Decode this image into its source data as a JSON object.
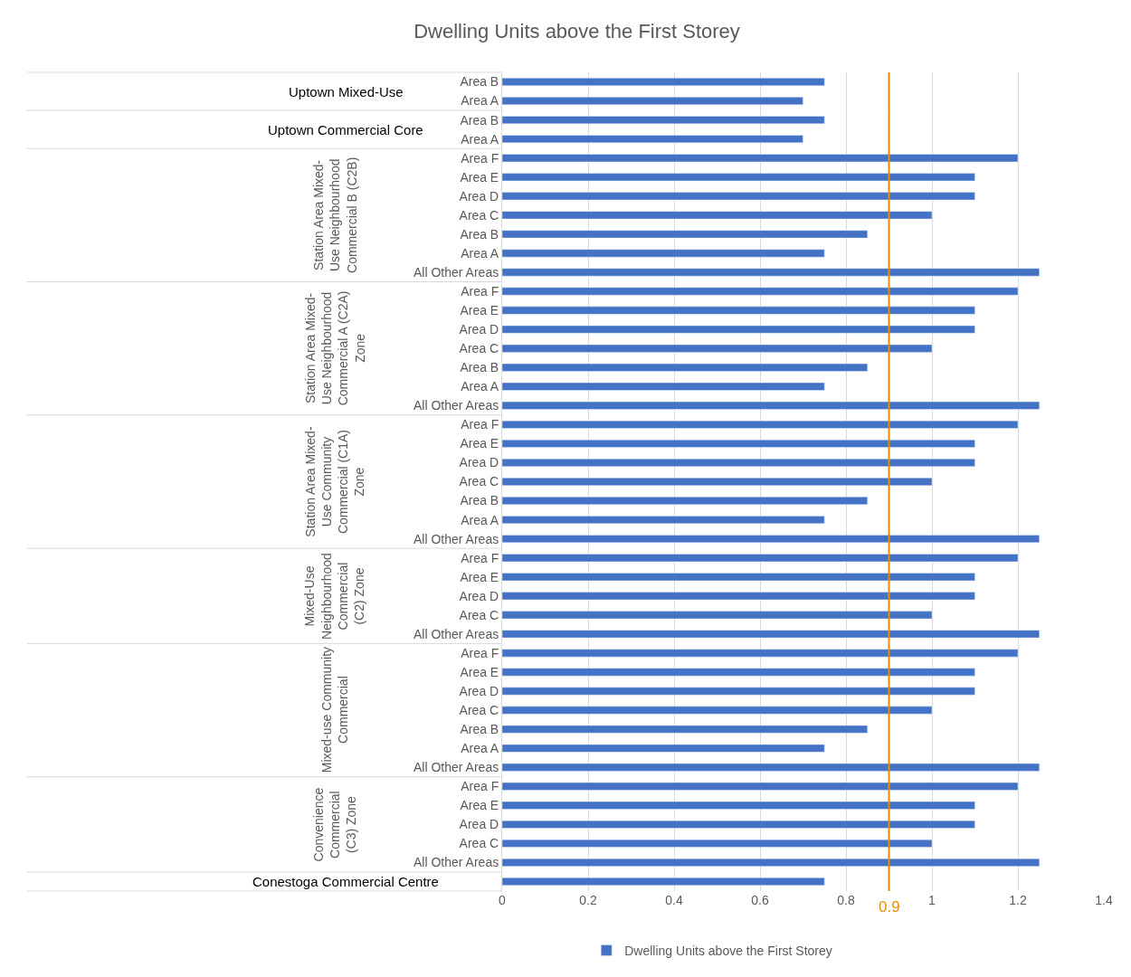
{
  "chart_data": [
    {
      "type": "bar",
      "orientation": "horizontal",
      "title": "Dwelling Units above the First Storey",
      "ylabel": "Uptown Mixed-Use",
      "categories": [
        "Area B",
        "Area A"
      ],
      "series": [
        {
          "color": "#4472c4",
          "values": [
            0.75,
            0.7
          ]
        }
      ],
      "ref_lines": [
        {
          "axis": "x",
          "value": 0.9,
          "color": "#ed8b00"
        }
      ],
      "xlim": [
        0,
        1.4
      ],
      "xticks": [
        0,
        0.2,
        0.4,
        0.6,
        0.8,
        1,
        1.2,
        1.4
      ],
      "tick_labels": "y",
      "grid": "x"
    },
    {
      "type": "bar",
      "orientation": "horizontal",
      "ylabel": "Uptown Commercial Core",
      "categories": [
        "Area B",
        "Area A"
      ],
      "series": [
        {
          "color": "#4472c4",
          "values": [
            0.75,
            0.7
          ]
        }
      ],
      "ref_lines": [
        {
          "axis": "x",
          "value": 0.9,
          "color": "#ed8b00"
        }
      ],
      "xlim": [
        0,
        1.4
      ],
      "xticks": [
        0,
        0.2,
        0.4,
        0.6,
        0.8,
        1,
        1.2,
        1.4
      ],
      "tick_labels": "y",
      "grid": "x"
    },
    {
      "type": "bar",
      "orientation": "horizontal",
      "ylabel": "Station Area Mixed-Use Neighbourhood Commercial B (C2B)",
      "categories": [
        "Area F",
        "Area E",
        "Area D",
        "Area C",
        "Area B",
        "Area A",
        "All Other Areas"
      ],
      "series": [
        {
          "color": "#4472c4",
          "values": [
            1.2,
            1.1,
            1.1,
            1.0,
            0.85,
            0.75,
            1.25
          ]
        }
      ],
      "ref_lines": [
        {
          "axis": "x",
          "value": 0.9,
          "color": "#ed8b00"
        }
      ],
      "xlim": [
        0,
        1.4
      ],
      "xticks": [
        0,
        0.2,
        0.4,
        0.6,
        0.8,
        1,
        1.2,
        1.4
      ],
      "tick_labels": "y",
      "grid": "x"
    },
    {
      "type": "bar",
      "orientation": "horizontal",
      "ylabel": "Station Area Mixed-Use Neighbourhood Commercial A (C2A) Zone",
      "categories": [
        "Area F",
        "Area E",
        "Area D",
        "Area C",
        "Area B",
        "Area A",
        "All Other Areas"
      ],
      "series": [
        {
          "color": "#4472c4",
          "values": [
            1.2,
            1.1,
            1.1,
            1.0,
            0.85,
            0.75,
            1.25
          ]
        }
      ],
      "ref_lines": [
        {
          "axis": "x",
          "value": 0.9,
          "color": "#ed8b00"
        }
      ],
      "xlim": [
        0,
        1.4
      ],
      "xticks": [
        0,
        0.2,
        0.4,
        0.6,
        0.8,
        1,
        1.2,
        1.4
      ],
      "tick_labels": "y",
      "grid": "x"
    },
    {
      "type": "bar",
      "orientation": "horizontal",
      "ylabel": "Station Area Mixed-Use Community Commercial (C1A) Zone",
      "categories": [
        "Area F",
        "Area E",
        "Area D",
        "Area C",
        "Area B",
        "Area A",
        "All Other Areas"
      ],
      "series": [
        {
          "color": "#4472c4",
          "values": [
            1.2,
            1.1,
            1.1,
            1.0,
            0.85,
            0.75,
            1.25
          ]
        }
      ],
      "ref_lines": [
        {
          "axis": "x",
          "value": 0.9,
          "color": "#ed8b00"
        }
      ],
      "xlim": [
        0,
        1.4
      ],
      "xticks": [
        0,
        0.2,
        0.4,
        0.6,
        0.8,
        1,
        1.2,
        1.4
      ],
      "tick_labels": "y",
      "grid": "x"
    },
    {
      "type": "bar",
      "orientation": "horizontal",
      "ylabel": "Mixed-Use Neighbourhood Commercial (C2) Zone",
      "categories": [
        "Area F",
        "Area E",
        "Area D",
        "Area C",
        "All Other Areas"
      ],
      "series": [
        {
          "color": "#4472c4",
          "values": [
            1.2,
            1.1,
            1.1,
            1.0,
            1.25
          ]
        }
      ],
      "ref_lines": [
        {
          "axis": "x",
          "value": 0.9,
          "color": "#ed8b00"
        }
      ],
      "xlim": [
        0,
        1.4
      ],
      "xticks": [
        0,
        0.2,
        0.4,
        0.6,
        0.8,
        1,
        1.2,
        1.4
      ],
      "tick_labels": "y",
      "grid": "x"
    },
    {
      "type": "bar",
      "orientation": "horizontal",
      "ylabel": "Mixed-use Community Commercial",
      "categories": [
        "Area F",
        "Area E",
        "Area D",
        "Area C",
        "Area B",
        "Area A",
        "All Other Areas"
      ],
      "series": [
        {
          "color": "#4472c4",
          "values": [
            1.2,
            1.1,
            1.1,
            1.0,
            0.85,
            0.75,
            1.25
          ]
        }
      ],
      "ref_lines": [
        {
          "axis": "x",
          "value": 0.9,
          "color": "#ed8b00"
        }
      ],
      "xlim": [
        0,
        1.4
      ],
      "xticks": [
        0,
        0.2,
        0.4,
        0.6,
        0.8,
        1,
        1.2,
        1.4
      ],
      "tick_labels": "y",
      "grid": "x"
    },
    {
      "type": "bar",
      "orientation": "horizontal",
      "ylabel": "Convenience Commercial (C3) Zone",
      "categories": [
        "Area F",
        "Area E",
        "Area D",
        "Area C",
        "All Other Areas"
      ],
      "series": [
        {
          "color": "#4472c4",
          "values": [
            1.2,
            1.1,
            1.1,
            1.0,
            1.25
          ]
        }
      ],
      "ref_lines": [
        {
          "axis": "x",
          "value": 0.9,
          "color": "#ed8b00"
        }
      ],
      "xlim": [
        0,
        1.4
      ],
      "xticks": [
        0,
        0.2,
        0.4,
        0.6,
        0.8,
        1,
        1.2,
        1.4
      ],
      "tick_labels": "y",
      "grid": "x"
    },
    {
      "type": "bar",
      "orientation": "horizontal",
      "ylabel": "Conestoga Commercial Centre",
      "categories": [
        null
      ],
      "series": [
        {
          "name": "Dwelling Units above the First Storey",
          "color": "#4472c4",
          "values": [
            0.75
          ]
        }
      ],
      "ref_lines": [
        {
          "axis": "x",
          "value": 0.9,
          "label": "0.9",
          "color": "#ed8b00"
        }
      ],
      "xlim": [
        0,
        1.4
      ],
      "xticks": [
        0,
        0.2,
        0.4,
        0.6,
        0.8,
        1,
        1.2,
        1.4
      ],
      "grid": "x",
      "legend": "bottom"
    }
  ]
}
